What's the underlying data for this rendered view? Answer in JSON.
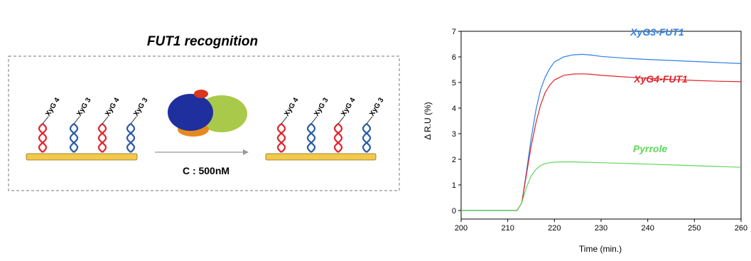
{
  "diagram": {
    "title": "FUT1 recognition",
    "left_strands": [
      "XyG 4",
      "XyG 3",
      "XyG 4",
      "XyG 3"
    ],
    "right_strands": [
      "XyG 4",
      "XyG 3",
      "XyG 4",
      "XyG 3"
    ],
    "condition": "C : 500nM"
  },
  "chart_data": {
    "type": "line",
    "x_label": "Time (min.)",
    "y_label": "Δ R.U (%)",
    "x": [
      200,
      205,
      210,
      212,
      213,
      214,
      215,
      216,
      217,
      218,
      219,
      220,
      222,
      224,
      226,
      228,
      230,
      235,
      240,
      245,
      250,
      255,
      260
    ],
    "series": [
      {
        "name": "XyG3-FUT1",
        "color": "#2f7fe8",
        "values": [
          0,
          0,
          0,
          0,
          0.3,
          1.5,
          2.8,
          3.9,
          4.7,
          5.2,
          5.55,
          5.8,
          6.0,
          6.08,
          6.1,
          6.07,
          6.02,
          5.95,
          5.9,
          5.86,
          5.82,
          5.78,
          5.74
        ]
      },
      {
        "name": "XyG4-FUT1",
        "color": "#e0242c",
        "values": [
          0,
          0,
          0,
          0,
          0.3,
          1.4,
          2.5,
          3.4,
          4.1,
          4.6,
          4.9,
          5.1,
          5.28,
          5.33,
          5.34,
          5.32,
          5.28,
          5.22,
          5.16,
          5.12,
          5.08,
          5.05,
          5.03
        ]
      },
      {
        "name": "Pyrrole",
        "color": "#5fd85a",
        "values": [
          0,
          0,
          0,
          0,
          0.3,
          0.9,
          1.35,
          1.6,
          1.75,
          1.83,
          1.87,
          1.89,
          1.9,
          1.9,
          1.89,
          1.88,
          1.87,
          1.84,
          1.81,
          1.78,
          1.75,
          1.72,
          1.69
        ]
      }
    ],
    "xlim": [
      200,
      260
    ],
    "xticks": [
      200,
      210,
      220,
      230,
      240,
      250,
      260
    ],
    "ylim": [
      0,
      7
    ],
    "yticks": [
      0,
      1,
      2,
      3,
      4,
      5,
      6,
      7
    ],
    "grid": false
  }
}
